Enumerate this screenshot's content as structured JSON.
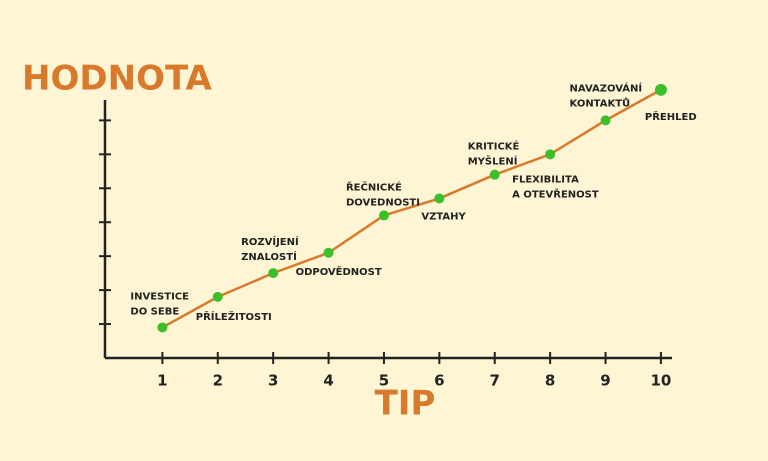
{
  "chart_data": {
    "type": "line",
    "ylabel": "HODNOTA",
    "xlabel": "TIP",
    "x": [
      1,
      2,
      3,
      4,
      5,
      6,
      7,
      8,
      9,
      10
    ],
    "xticks": [
      1,
      2,
      3,
      4,
      5,
      6,
      7,
      8,
      9,
      10
    ],
    "xlim": [
      0,
      10.2
    ],
    "ylim": [
      0,
      7.6
    ],
    "yticks": [
      1,
      2,
      3,
      4,
      5,
      6,
      7
    ],
    "series": [
      {
        "color": "#d9792b",
        "marker_color": "#3cc02a",
        "values": [
          0.9,
          1.8,
          2.5,
          3.1,
          4.2,
          4.7,
          5.4,
          6.0,
          7.0,
          7.9
        ]
      }
    ],
    "point_labels": [
      [
        "INVESTICE",
        "DO SEBE"
      ],
      [
        "PŘÍLEŽITOSTI"
      ],
      [
        "ROZVÍJENÍ",
        "ZNALOSTÍ"
      ],
      [
        "ODPOVĚDNOST"
      ],
      [
        "ŘEČNICKÉ",
        "DOVEDNOSTI"
      ],
      [
        "VZTAHY"
      ],
      [
        "KRITICKÉ",
        "MYŠLENÍ"
      ],
      [
        "FLEXIBILITA",
        "A OTEVŘENOST"
      ],
      [
        "NAVAZOVÁNÍ",
        "KONTAKTŮ"
      ],
      [
        "PŘEHLED"
      ]
    ]
  }
}
